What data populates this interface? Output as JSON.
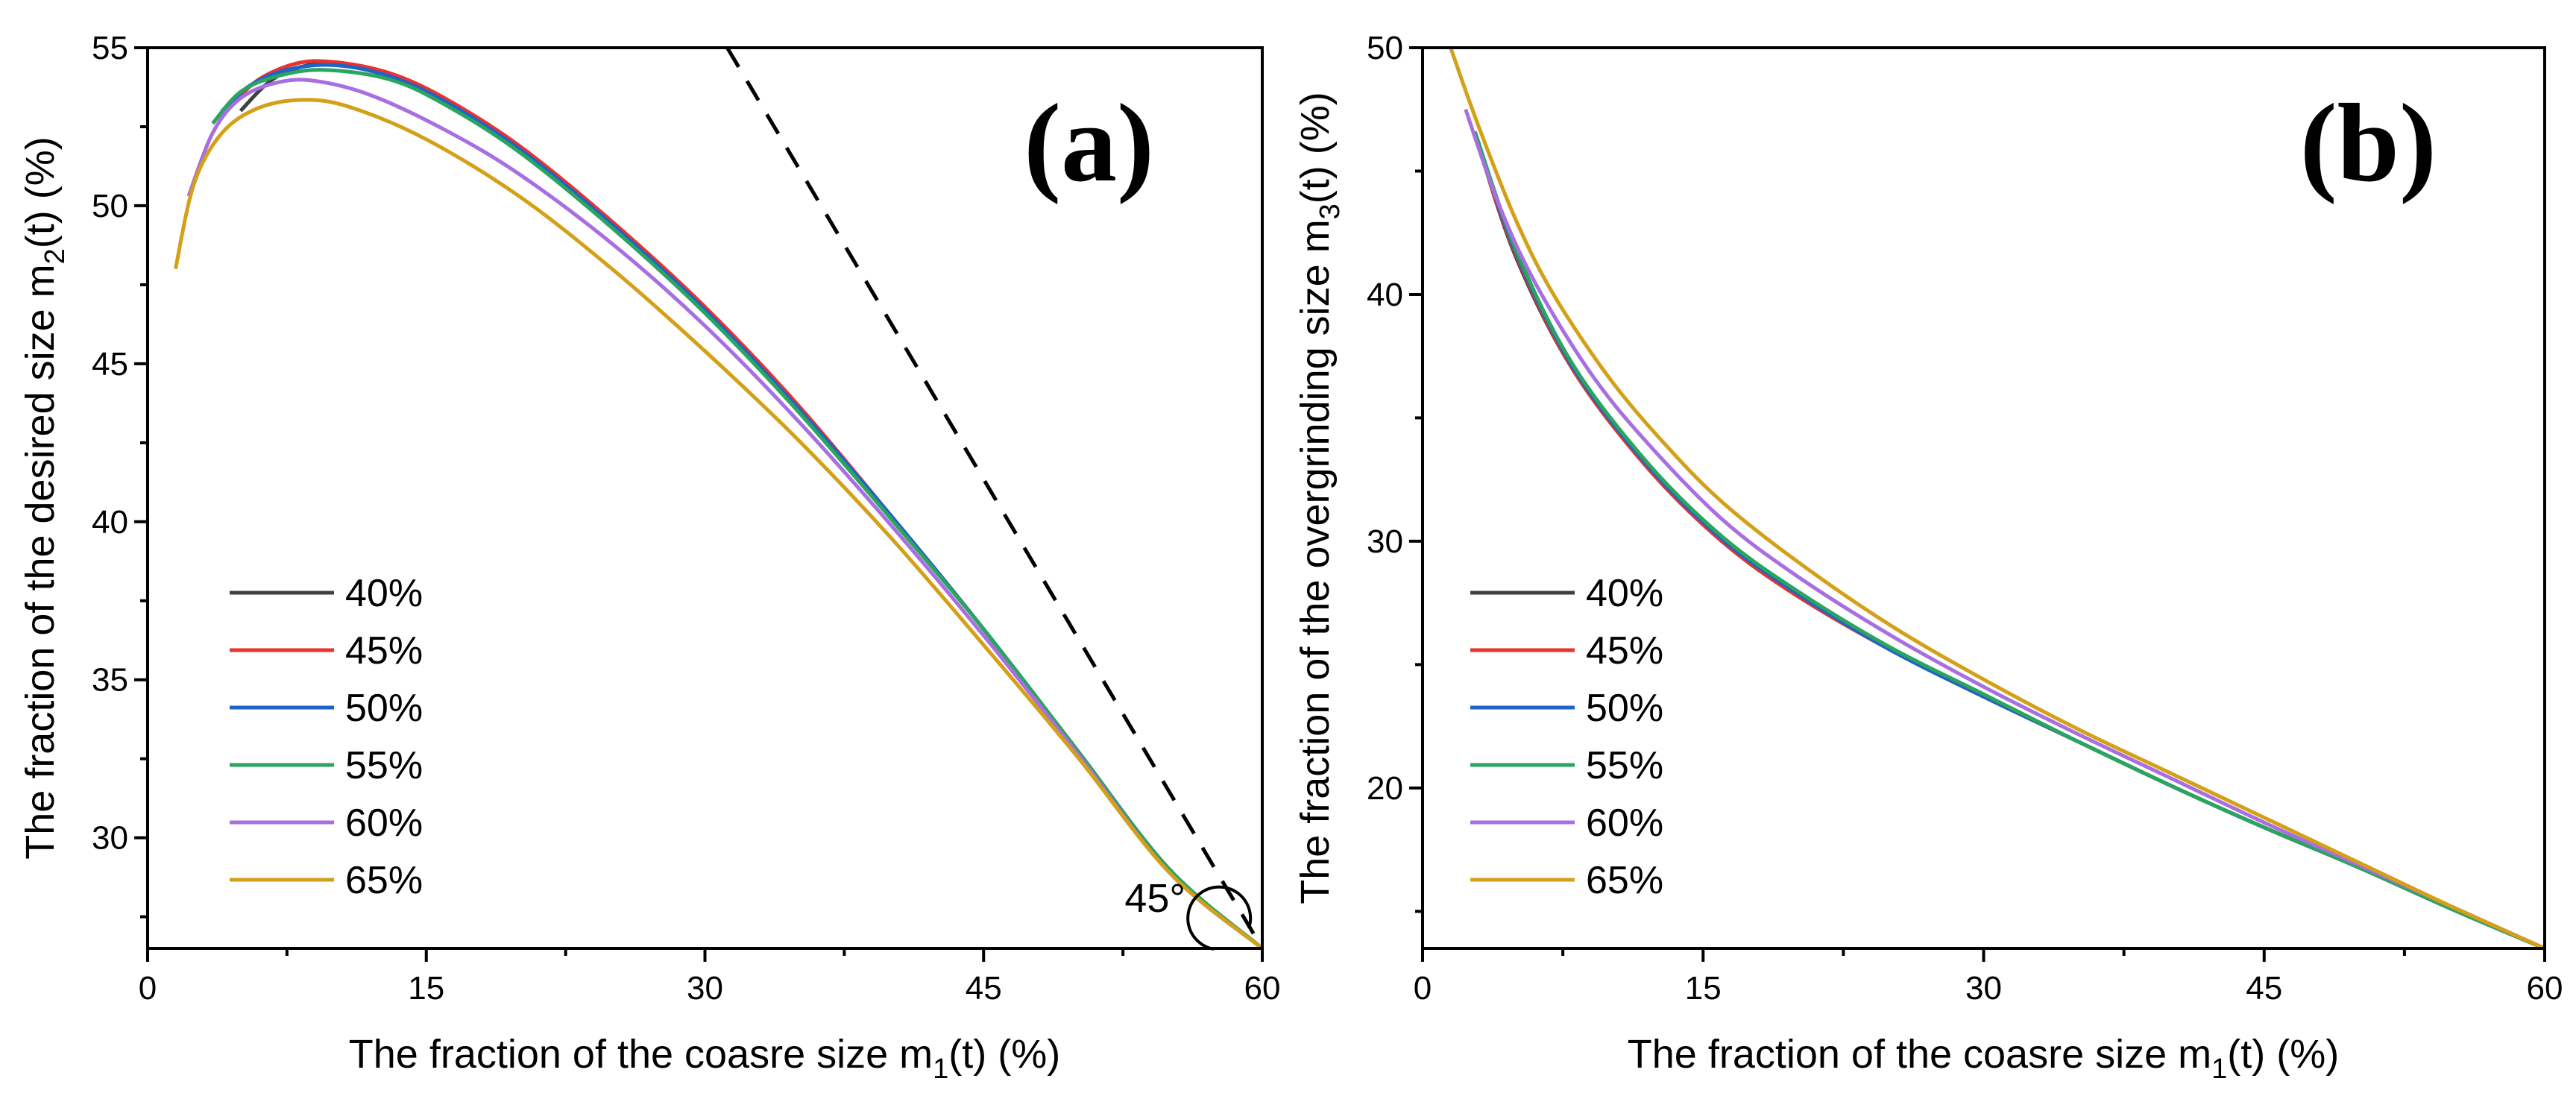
{
  "chart_data": [
    {
      "type": "line",
      "panel_label": "(a)",
      "xlabel": {
        "pre": "The fraction of the coasre size m",
        "sub": "1",
        "post": "(t) (%)"
      },
      "ylabel": {
        "pre": "The fraction of the desired size m",
        "sub": "2",
        "post": "(t) (%)"
      },
      "xlim": [
        0,
        60
      ],
      "ylim": [
        26.5,
        55
      ],
      "xticks": [
        0,
        15,
        30,
        45,
        60
      ],
      "xtick_labels": [
        "0",
        "15",
        "30",
        "45",
        "60"
      ],
      "yticks": [
        30,
        35,
        40,
        45,
        50,
        55
      ],
      "ytick_labels": [
        "30",
        "35",
        "40",
        "45",
        "50",
        "55"
      ],
      "grid": false,
      "legend_position": "lower-left",
      "annotation": "45°",
      "reference_line": {
        "label": "slope -1 line",
        "x": [
          31.2,
          60
        ],
        "y": [
          55,
          26.5
        ]
      },
      "series": [
        {
          "name": "40%",
          "color": "#404040",
          "x": [
            5.0,
            6.5,
            8.0,
            10.0,
            13.0,
            16.0,
            20.0,
            25.0,
            30.0,
            35.0,
            40.0,
            45.0,
            50.0,
            55.0,
            60.0
          ],
          "y": [
            53.0,
            53.9,
            54.35,
            54.5,
            54.1,
            53.3,
            51.8,
            49.4,
            46.7,
            43.6,
            40.2,
            36.6,
            32.8,
            29.0,
            26.5
          ]
        },
        {
          "name": "45%",
          "color": "#e8332e",
          "x": [
            4.5,
            6.0,
            8.0,
            10.0,
            13.0,
            16.0,
            20.0,
            25.0,
            30.0,
            35.0,
            40.0,
            45.0,
            50.0,
            55.0,
            60.0
          ],
          "y": [
            53.2,
            54.0,
            54.5,
            54.55,
            54.2,
            53.4,
            51.9,
            49.5,
            46.8,
            43.7,
            40.2,
            36.6,
            32.8,
            29.0,
            26.5
          ]
        },
        {
          "name": "50%",
          "color": "#1f63c9",
          "x": [
            4.0,
            5.5,
            7.5,
            10.0,
            13.0,
            16.0,
            20.0,
            25.0,
            30.0,
            35.0,
            40.0,
            45.0,
            50.0,
            55.0,
            60.0
          ],
          "y": [
            53.0,
            53.8,
            54.3,
            54.45,
            54.1,
            53.3,
            51.8,
            49.4,
            46.7,
            43.6,
            40.2,
            36.6,
            32.8,
            29.0,
            26.5
          ]
        },
        {
          "name": "55%",
          "color": "#2aa55f",
          "x": [
            3.5,
            5.0,
            7.0,
            9.5,
            13.0,
            16.0,
            20.0,
            25.0,
            30.0,
            35.0,
            40.0,
            45.0,
            50.0,
            55.0,
            60.0
          ],
          "y": [
            52.6,
            53.6,
            54.1,
            54.3,
            54.0,
            53.2,
            51.7,
            49.3,
            46.6,
            43.5,
            40.1,
            36.6,
            32.8,
            29.0,
            26.5
          ]
        },
        {
          "name": "60%",
          "color": "#a86fe0",
          "x": [
            2.2,
            3.5,
            5.0,
            7.0,
            9.0,
            12.0,
            16.0,
            20.0,
            25.0,
            30.0,
            35.0,
            40.0,
            45.0,
            50.0,
            55.0,
            60.0
          ],
          "y": [
            50.3,
            52.3,
            53.4,
            53.9,
            53.95,
            53.5,
            52.4,
            51.0,
            48.8,
            46.2,
            43.2,
            39.9,
            36.4,
            32.7,
            28.9,
            26.5
          ]
        },
        {
          "name": "65%",
          "color": "#d4a017",
          "x": [
            1.5,
            2.5,
            4.0,
            6.0,
            8.5,
            11.0,
            15.0,
            20.0,
            25.0,
            30.0,
            35.0,
            40.0,
            45.0,
            50.0,
            55.0,
            60.0
          ],
          "y": [
            48.0,
            50.7,
            52.3,
            53.1,
            53.35,
            53.1,
            52.1,
            50.3,
            48.0,
            45.4,
            42.6,
            39.5,
            36.1,
            32.6,
            28.9,
            26.5
          ]
        }
      ]
    },
    {
      "type": "line",
      "panel_label": "(b)",
      "xlabel": {
        "pre": "The fraction of the coasre size m",
        "sub": "1",
        "post": "(t) (%)"
      },
      "ylabel": {
        "pre": "The fraction of the overgrinding size m",
        "sub": "3",
        "post": "(t) (%)"
      },
      "xlim": [
        0,
        60
      ],
      "ylim": [
        13.5,
        50
      ],
      "xticks": [
        0,
        15,
        30,
        45,
        60
      ],
      "xtick_labels": [
        "0",
        "15",
        "30",
        "45",
        "60"
      ],
      "yticks": [
        20,
        30,
        40,
        50
      ],
      "ytick_labels": [
        "20",
        "30",
        "40",
        "50"
      ],
      "grid": false,
      "legend_position": "lower-left",
      "series": [
        {
          "name": "40%",
          "color": "#404040",
          "x": [
            3.0,
            5.0,
            8.0,
            12.0,
            16.0,
            20.0,
            25.0,
            30.0,
            35.0,
            40.0,
            45.0,
            50.0,
            55.0,
            60.0
          ],
          "y": [
            46.0,
            41.5,
            37.0,
            33.0,
            30.0,
            27.8,
            25.6,
            23.7,
            21.9,
            20.1,
            18.4,
            16.8,
            15.1,
            13.5
          ]
        },
        {
          "name": "45%",
          "color": "#e8332e",
          "x": [
            3.0,
            5.0,
            8.0,
            12.0,
            16.0,
            20.0,
            25.0,
            30.0,
            35.0,
            40.0,
            45.0,
            50.0,
            55.0,
            60.0
          ],
          "y": [
            46.0,
            41.6,
            37.0,
            33.0,
            30.0,
            27.8,
            25.6,
            23.7,
            21.9,
            20.1,
            18.4,
            16.8,
            15.1,
            13.5
          ]
        },
        {
          "name": "50%",
          "color": "#1f63c9",
          "x": [
            3.0,
            5.0,
            8.0,
            12.0,
            16.0,
            20.0,
            25.0,
            30.0,
            35.0,
            40.0,
            45.0,
            50.0,
            55.0,
            60.0
          ],
          "y": [
            46.1,
            41.7,
            37.1,
            33.1,
            30.1,
            27.9,
            25.6,
            23.7,
            21.9,
            20.1,
            18.4,
            16.8,
            15.1,
            13.5
          ]
        },
        {
          "name": "55%",
          "color": "#2aa55f",
          "x": [
            2.8,
            5.0,
            8.0,
            12.0,
            16.0,
            20.0,
            25.0,
            30.0,
            35.0,
            40.0,
            45.0,
            50.0,
            55.0,
            60.0
          ],
          "y": [
            46.6,
            41.8,
            37.2,
            33.2,
            30.2,
            28.0,
            25.7,
            23.8,
            21.9,
            20.1,
            18.4,
            16.8,
            15.1,
            13.5
          ]
        },
        {
          "name": "60%",
          "color": "#a86fe0",
          "x": [
            2.3,
            4.0,
            6.0,
            9.0,
            12.0,
            16.0,
            20.0,
            25.0,
            30.0,
            35.0,
            40.0,
            45.0,
            50.0,
            55.0,
            60.0
          ],
          "y": [
            47.5,
            43.8,
            40.5,
            36.8,
            34.0,
            30.9,
            28.6,
            26.2,
            24.1,
            22.2,
            20.4,
            18.6,
            16.9,
            15.2,
            13.5
          ]
        },
        {
          "name": "65%",
          "color": "#d4a017",
          "x": [
            1.5,
            3.0,
            5.0,
            7.0,
            10.0,
            13.0,
            16.0,
            20.0,
            25.0,
            30.0,
            35.0,
            40.0,
            45.0,
            50.0,
            55.0,
            60.0
          ],
          "y": [
            50.0,
            46.8,
            43.0,
            40.0,
            36.6,
            33.9,
            31.6,
            29.2,
            26.6,
            24.4,
            22.4,
            20.6,
            18.8,
            17.0,
            15.2,
            13.5
          ]
        }
      ]
    }
  ]
}
